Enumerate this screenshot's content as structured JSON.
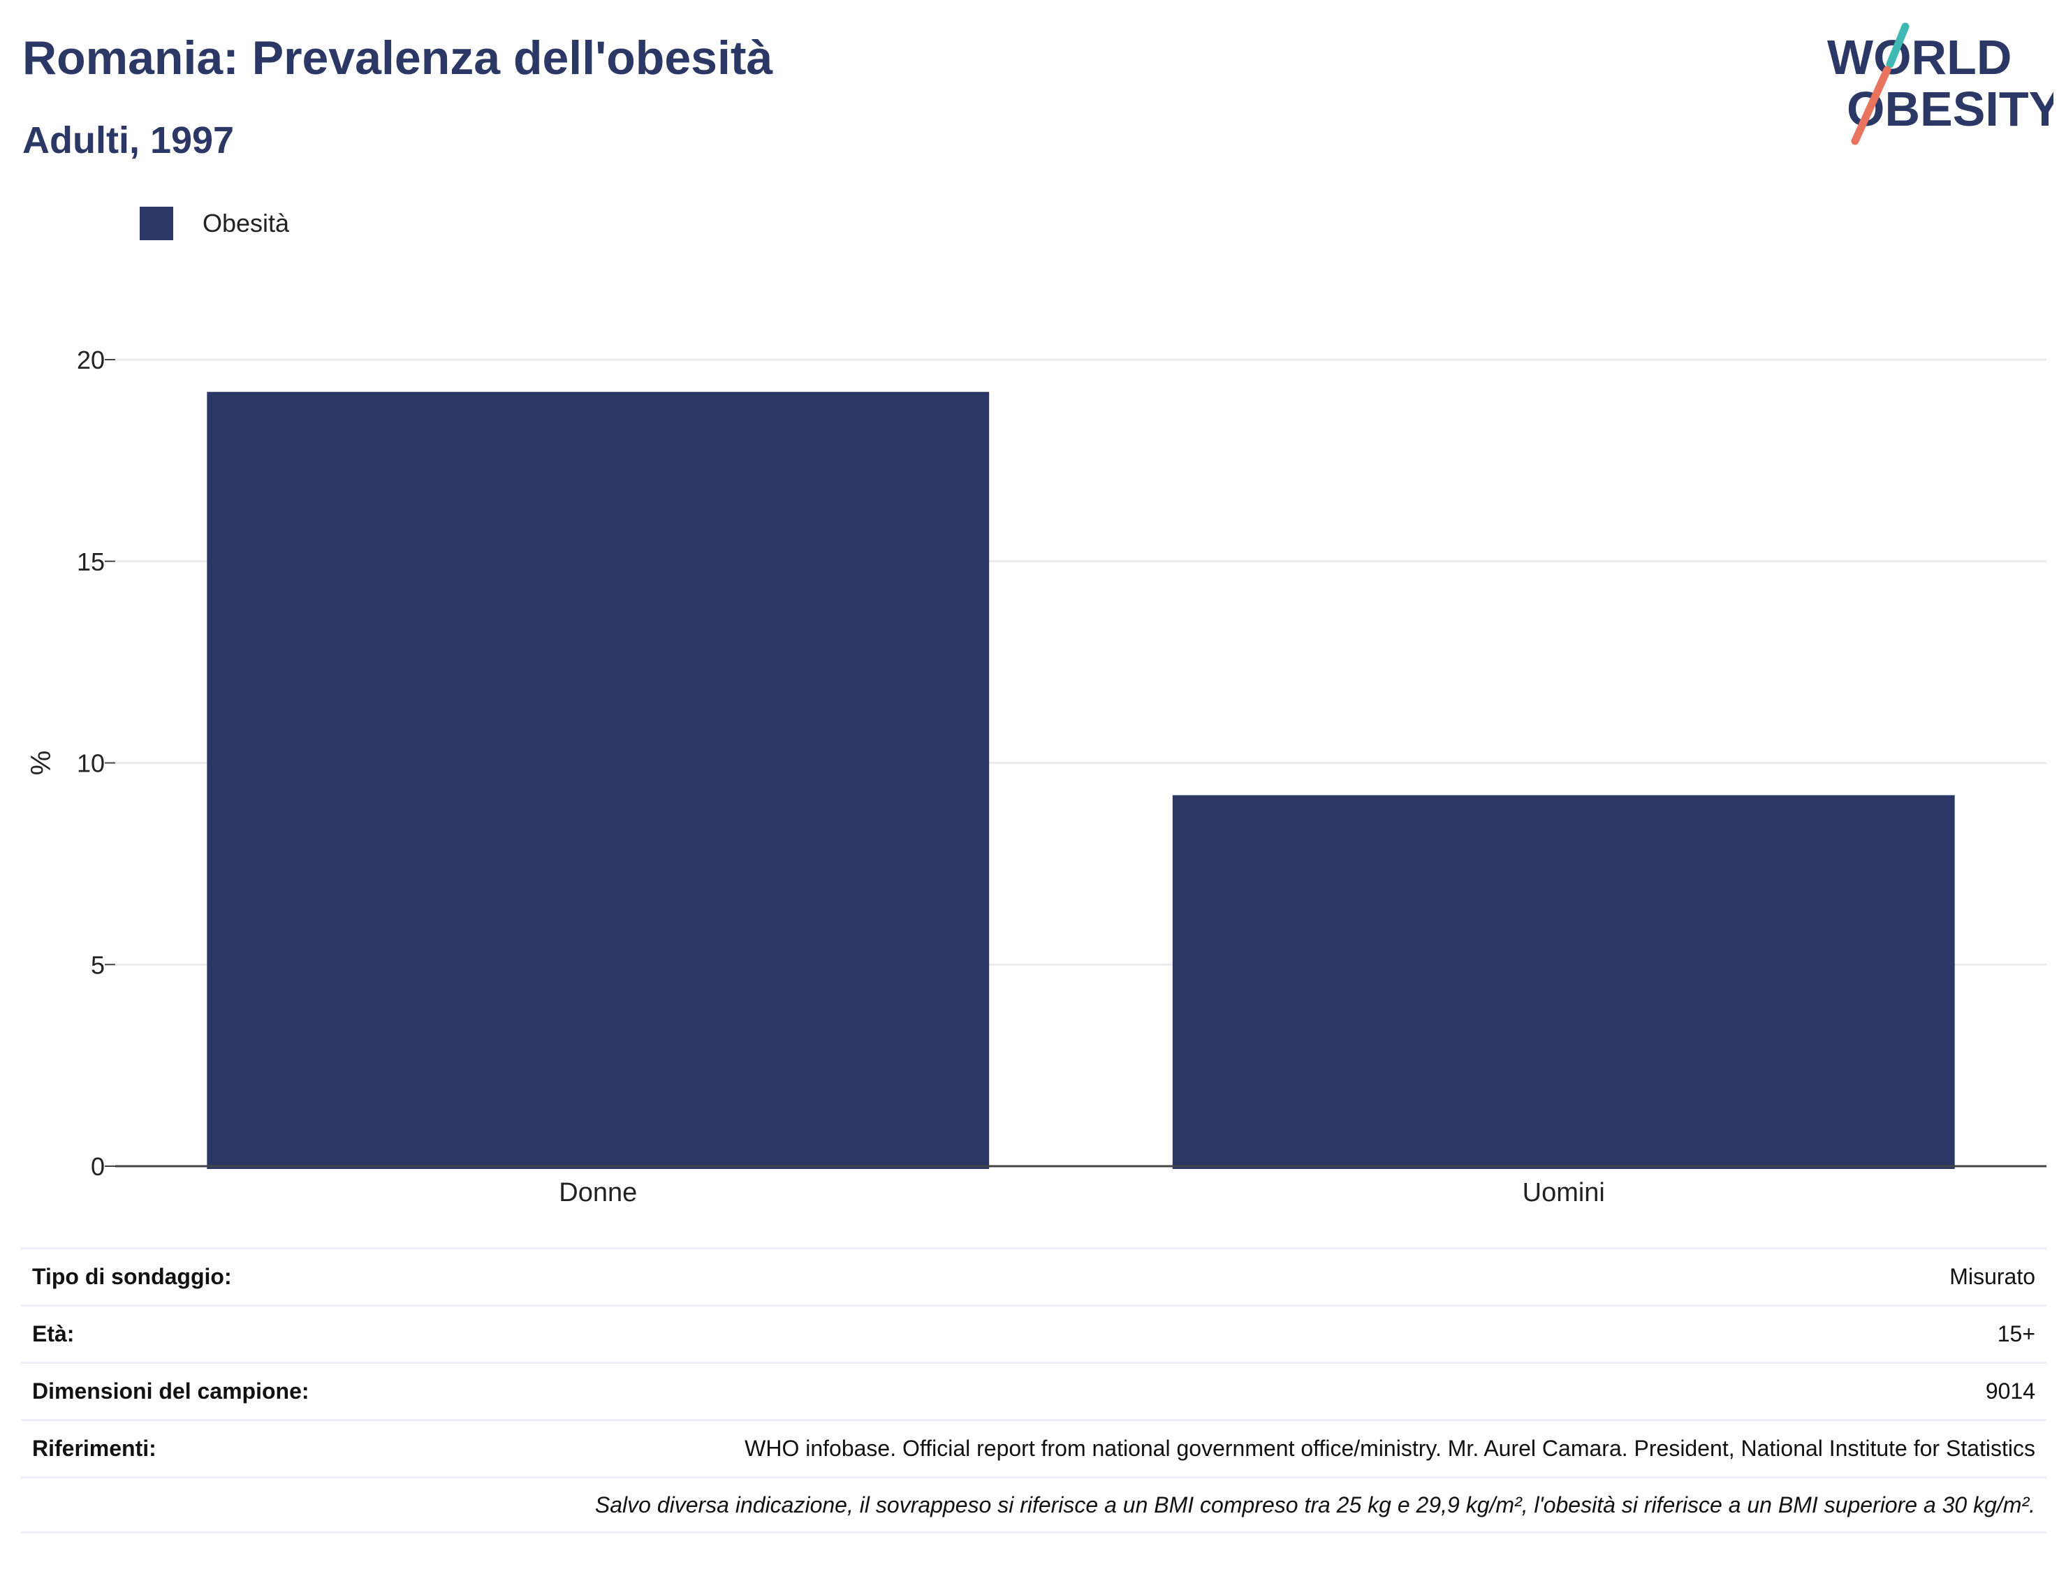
{
  "header": {
    "title": "Romania: Prevalenza dell'obesità",
    "subtitle": "Adulti, 1997"
  },
  "logo": {
    "line1": "WORLD",
    "line2": "OBESITY",
    "accent_teal": "#3fb8b3",
    "accent_coral": "#e8735f"
  },
  "legend": {
    "label": "Obesità",
    "color": "#2b3764"
  },
  "chart_data": {
    "type": "bar",
    "categories": [
      "Donne",
      "Uomini"
    ],
    "series": [
      {
        "name": "Obesità",
        "values": [
          19.2,
          9.2
        ],
        "color": "#2b3764"
      }
    ],
    "ylabel": "%",
    "ylim": [
      0,
      20
    ],
    "yticks": [
      0,
      5,
      10,
      15,
      20
    ],
    "grid": true,
    "legend_position": "top-left"
  },
  "info": {
    "rows": [
      {
        "label": "Tipo di sondaggio:",
        "value": "Misurato"
      },
      {
        "label": "Età:",
        "value": "15+"
      },
      {
        "label": "Dimensioni del campione:",
        "value": "9014"
      },
      {
        "label": "Riferimenti:",
        "value": "WHO infobase. Official report from national government office/ministry. Mr. Aurel Camara. President, National Institute for Statistics"
      }
    ],
    "note": "Salvo diversa indicazione, il sovrappeso si riferisce a un BMI compreso tra 25 kg e 29,9 kg/m², l'obesità si riferisce a un BMI superiore a 30 kg/m²."
  }
}
